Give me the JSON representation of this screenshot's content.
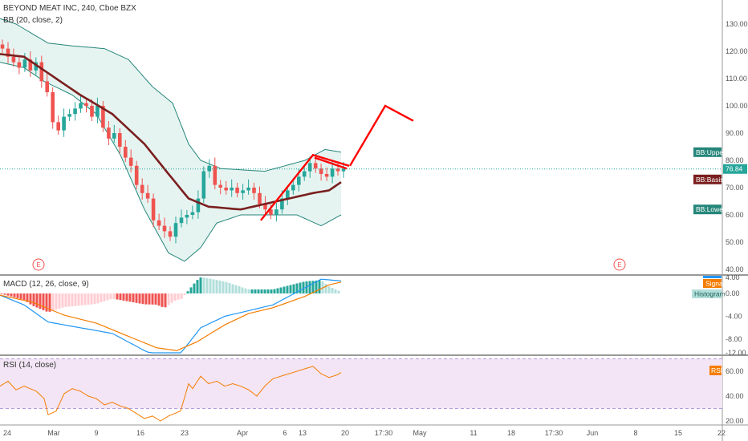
{
  "chart_data": [
    {
      "type": "candlestick",
      "title": "BEYOND MEAT INC, 240, Cboe BZX",
      "indicator_label": "BB (20, close, 2)",
      "ylim": [
        36,
        140
      ],
      "y_ticks": [
        "130.00",
        "120.00",
        "110.00",
        "100.00",
        "90.00",
        "80.00",
        "70.00",
        "60.00",
        "50.00",
        "40.00"
      ],
      "y_tick_values": [
        130,
        120,
        110,
        100,
        90,
        80,
        70,
        60,
        50,
        40
      ],
      "last_price": "76.84",
      "last_price_value": 76.84,
      "earnings_marker": "E",
      "series_tags": [
        {
          "name": "BB:Upper",
          "value": 83,
          "color": "#26867a"
        },
        {
          "name": "BB:Basis",
          "value": 73,
          "color": "#7a1f1f"
        },
        {
          "name": "BB:Lower",
          "value": 62,
          "color": "#26867a"
        }
      ],
      "colors": {
        "up": "#26a69a",
        "down": "#ef5350",
        "basis": "#7a1f1f",
        "band": "#26867a",
        "band_fill": "#e6f4f1",
        "drawing": "#ff0000",
        "price_line": "#26a69a"
      }
    },
    {
      "type": "line",
      "title": "MACD (12, 26, close, 9)",
      "ylim": [
        -13,
        5
      ],
      "y_ticks": [
        "4.00",
        "0.00",
        "-4.00",
        "-8.00",
        "-12.00"
      ],
      "y_tick_values": [
        4,
        0,
        -4,
        -8,
        -12
      ],
      "series_tags": [
        {
          "name": "Signal",
          "color": "#f57c00"
        },
        {
          "name": "Histogram",
          "color": "#b2dfdb"
        }
      ],
      "colors": {
        "macd": "#2196f3",
        "signal": "#f57c00",
        "hist_up": "#26a69a",
        "hist_up_light": "#b2dfdb",
        "hist_down": "#ef5350",
        "hist_down_light": "#ffcdd2"
      }
    },
    {
      "type": "line",
      "title": "RSI (14, close)",
      "ylim": [
        15,
        75
      ],
      "y_ticks": [
        "60.00",
        "40.00",
        "20.00"
      ],
      "y_tick_values": [
        60,
        40,
        20
      ],
      "band": [
        30,
        70
      ],
      "series_tags": [
        {
          "name": "RSI",
          "color": "#f57c00"
        }
      ],
      "colors": {
        "rsi": "#f57c00",
        "band_fill": "#f3e5f5",
        "band_line": "#b39ddb"
      }
    }
  ],
  "x_axis": {
    "labels": [
      "24",
      "Mar",
      "9",
      "16",
      "23",
      "Apr",
      "6",
      "13",
      "20",
      "17:30",
      "May",
      "11",
      "18",
      "17:30",
      "Jun",
      "8",
      "15",
      "22"
    ]
  }
}
